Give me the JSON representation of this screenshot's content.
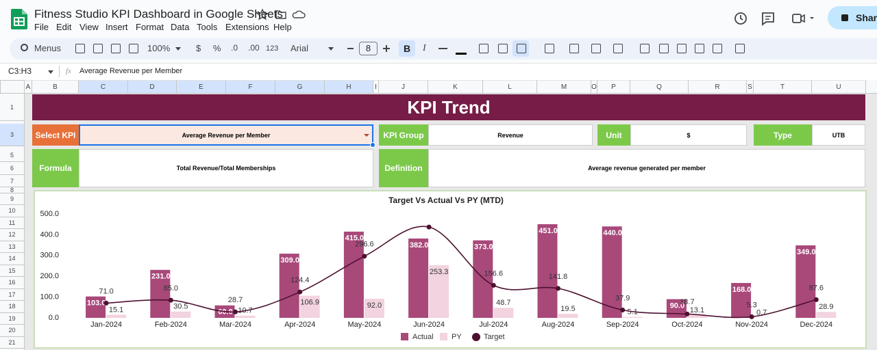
{
  "header": {
    "title": "Fitness Studio KPI Dashboard in Google Sheets",
    "menu": [
      "File",
      "Edit",
      "View",
      "Insert",
      "Format",
      "Data",
      "Tools",
      "Extensions",
      "Help"
    ],
    "share": "Share"
  },
  "toolbar": {
    "search": "Menus",
    "zoom": "100%",
    "currency": "$",
    "percent": "%",
    "decrease_decimal": ".0",
    "increase_decimal": ".00",
    "number_format": "123",
    "font": "Arial",
    "font_size": "8",
    "bold": "B",
    "italic": "I"
  },
  "formula_bar": {
    "name_box": "C3:H3",
    "function_icon": "fx",
    "formula": "Average Revenue per Member"
  },
  "columns": [
    "A",
    "B",
    "C",
    "D",
    "E",
    "F",
    "G",
    "H",
    "I",
    "J",
    "K",
    "L",
    "M",
    "O",
    "P",
    "Q",
    "R",
    "S",
    "T",
    "U"
  ],
  "rows": [
    1,
    3,
    5,
    6,
    7,
    8,
    9,
    10,
    11,
    12,
    13,
    14,
    15,
    16,
    17,
    18,
    19,
    20,
    21
  ],
  "dashboard": {
    "title": "KPI Trend",
    "select_kpi": {
      "label": "Select KPI",
      "value": "Average Revenue per Member"
    },
    "kpi_group": {
      "label": "KPI Group",
      "value": "Revenue"
    },
    "unit": {
      "label": "Unit",
      "value": "$"
    },
    "type": {
      "label": "Type",
      "value": "UTB"
    },
    "formula": {
      "label": "Formula",
      "value": "Total Revenue/Total Memberships"
    },
    "definition": {
      "label": "Definition",
      "value": "Average revenue generated per member"
    }
  },
  "chart_data": {
    "type": "bar",
    "title": "Target Vs Actual Vs PY (MTD)",
    "categories": [
      "Jan-2024",
      "Feb-2024",
      "Mar-2024",
      "Apr-2024",
      "May-2024",
      "Jun-2024",
      "Jul-2024",
      "Aug-2024",
      "Sep-2024",
      "Oct-2024",
      "Nov-2024",
      "Dec-2024"
    ],
    "series": [
      {
        "name": "Actual",
        "color": "#a8497a",
        "values": [
          103,
          231,
          60,
          309,
          415,
          382,
          373,
          451,
          440,
          90,
          168,
          349
        ],
        "value_labels": [
          "103.0",
          "231.0",
          "60.0",
          "309.0",
          "415.0",
          "382.0",
          "373.0",
          "451.0",
          "440.0",
          "90.0",
          "168.0",
          "349.0"
        ]
      },
      {
        "name": "PY",
        "color": "#f2d3df",
        "values": [
          15.1,
          30.5,
          10.7,
          106.9,
          92,
          253.3,
          48.7,
          19.5,
          5.1,
          13.1,
          0.7,
          28.9
        ],
        "value_labels": [
          "15.1",
          "30.5",
          "10.7",
          "106.9",
          "92.0",
          "253.3",
          "48.7",
          "19.5",
          "5.1",
          "13.1",
          "0.7",
          "28.9"
        ]
      },
      {
        "name": "Target",
        "type": "line",
        "color": "#4d1030",
        "values": [
          71,
          85,
          28.7,
          124.4,
          296.6,
          437,
          156.6,
          141.8,
          37.9,
          18.7,
          5.3,
          87.6
        ],
        "value_labels": [
          "71.0",
          "85.0",
          "28.7",
          "124.4",
          "296.6",
          null,
          "156.6",
          "141.8",
          "37.9",
          "18.7",
          "5.3",
          "87.6"
        ]
      }
    ],
    "ylim": [
      0,
      500
    ],
    "yticks": [
      {
        "value": 0,
        "label": "0.0"
      },
      {
        "value": 100,
        "label": "100.0"
      },
      {
        "value": 200,
        "label": "200.0"
      },
      {
        "value": 300,
        "label": "300.0"
      },
      {
        "value": 400,
        "label": "400.0"
      },
      {
        "value": 500,
        "label": "500.0"
      }
    ],
    "legend": "bottom"
  }
}
